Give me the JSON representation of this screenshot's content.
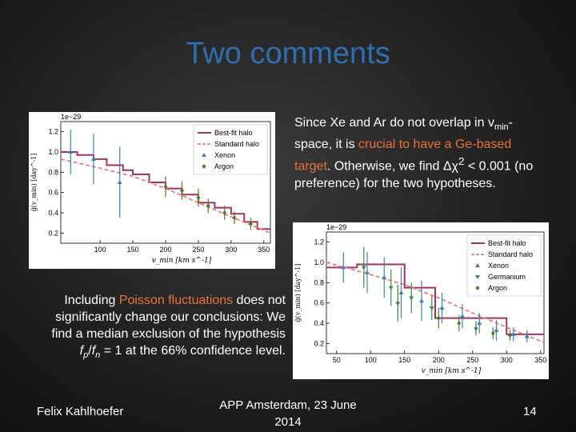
{
  "slide": {
    "title": "Two comments",
    "right_text": {
      "part1": "Since Xe and Ar do not overlap in v",
      "sub": "min",
      "part2": "-space, it is ",
      "highlight": "crucial to have a Ge-based target",
      "part3": ". Otherwise, we find Δχ",
      "sup": "2",
      "part4": " < 0.001 (no preference) for the two hypotheses."
    },
    "left_text": {
      "part1": "Including ",
      "highlight": "Poisson fluctuations",
      "part2": " does not significantly change our conclusions: We find a median exclusion of the hypothesis ",
      "fp": "f",
      "fp_sub": "p",
      "slash": "/",
      "fn": "f",
      "fn_sub": "n",
      "part3": " = 1 at the 66% confidence level."
    },
    "footer": {
      "author": "Felix Kahlhoefer",
      "event_line1": "APP Amsterdam, 23 June",
      "event_line2": "2014",
      "page": "14"
    }
  },
  "colors": {
    "title": "#2f6fb0",
    "highlight": "#e8743b",
    "best_fit": "#a0355a",
    "standard": "#e8807a",
    "xenon": "#3d7fb8",
    "argon": "#4e7a2e",
    "germanium": "#3d8a4a"
  },
  "chart_data": [
    {
      "type": "line",
      "scale_label": "1e−29",
      "xlabel": "v_min [km s^-1]",
      "ylabel": "g̃(v_min) [day^-1]",
      "xlim": [
        40,
        360
      ],
      "ylim": [
        0.1,
        1.3
      ],
      "x_ticks": [
        "100",
        "150",
        "200",
        "250",
        "300",
        "350"
      ],
      "y_ticks": [
        "0.2",
        "0.4",
        "0.6",
        "0.8",
        "1.0",
        "1.2"
      ],
      "legend_position": "top-right",
      "legend": [
        "Best-fit halo",
        "Standard halo",
        "Xenon",
        "Argon"
      ],
      "series": [
        {
          "name": "Best-fit halo",
          "kind": "step",
          "x": [
            40,
            55,
            65,
            90,
            110,
            135,
            150,
            175,
            200,
            225,
            250,
            275,
            300,
            320,
            340,
            360
          ],
          "y": [
            1.0,
            1.0,
            0.97,
            0.93,
            0.87,
            0.82,
            0.78,
            0.7,
            0.64,
            0.58,
            0.5,
            0.45,
            0.39,
            0.31,
            0.24,
            0.24
          ]
        },
        {
          "name": "Standard halo",
          "kind": "line",
          "x": [
            40,
            100,
            150,
            200,
            250,
            300,
            360
          ],
          "y": [
            0.93,
            0.84,
            0.76,
            0.64,
            0.5,
            0.36,
            0.2
          ]
        },
        {
          "name": "Xenon",
          "kind": "errorbar",
          "x": [
            55,
            90,
            130
          ],
          "y": [
            1.0,
            0.93,
            0.7
          ],
          "yerr": [
            0.22,
            0.25,
            0.35
          ]
        },
        {
          "name": "Argon",
          "kind": "errorbar",
          "x": [
            200,
            225,
            250,
            265,
            290,
            305,
            330
          ],
          "y": [
            0.66,
            0.62,
            0.55,
            0.47,
            0.4,
            0.35,
            0.29
          ],
          "yerr": [
            0.1,
            0.09,
            0.09,
            0.07,
            0.07,
            0.06,
            0.06
          ]
        }
      ]
    },
    {
      "type": "line",
      "scale_label": "1e−29",
      "xlabel": "v_min [km s^-1]",
      "ylabel": "g̃(v_min) [day^-1]",
      "xlim": [
        35,
        355
      ],
      "ylim": [
        0.1,
        1.3
      ],
      "x_ticks": [
        "50",
        "100",
        "150",
        "200",
        "250",
        "300",
        "350"
      ],
      "y_ticks": [
        "0.2",
        "0.4",
        "0.6",
        "0.8",
        "1.0",
        "1.2"
      ],
      "legend_position": "top-right",
      "legend": [
        "Best-fit halo",
        "Standard halo",
        "Xenon",
        "Germanium",
        "Argon"
      ],
      "series": [
        {
          "name": "Best-fit halo",
          "kind": "step",
          "x": [
            35,
            80,
            150,
            195,
            300,
            355
          ],
          "y": [
            0.95,
            0.98,
            0.75,
            0.45,
            0.29,
            0.29
          ]
        },
        {
          "name": "Standard halo",
          "kind": "line",
          "x": [
            35,
            100,
            150,
            200,
            250,
            300,
            355
          ],
          "y": [
            1.0,
            0.88,
            0.78,
            0.65,
            0.5,
            0.36,
            0.21
          ]
        },
        {
          "name": "Xenon",
          "kind": "errorbar",
          "x": [
            60,
            95,
            120,
            145,
            175,
            205,
            235,
            260,
            285,
            310,
            330
          ],
          "y": [
            0.95,
            0.9,
            0.85,
            0.7,
            0.62,
            0.55,
            0.47,
            0.4,
            0.33,
            0.29,
            0.27
          ],
          "yerr": [
            0.15,
            0.2,
            0.2,
            0.25,
            0.2,
            0.15,
            0.12,
            0.1,
            0.1,
            0.07,
            0.06
          ]
        },
        {
          "name": "Germanium",
          "kind": "errorbar",
          "x": [
            90,
            130,
            160,
            190
          ],
          "y": [
            0.95,
            0.75,
            0.65,
            0.55
          ],
          "yerr": [
            0.2,
            0.18,
            0.15,
            0.12
          ]
        },
        {
          "name": "Argon",
          "kind": "errorbar",
          "x": [
            140,
            200,
            230,
            255,
            280,
            305
          ],
          "y": [
            0.6,
            0.45,
            0.4,
            0.35,
            0.3,
            0.28
          ],
          "yerr": [
            0.18,
            0.1,
            0.08,
            0.07,
            0.06,
            0.05
          ]
        }
      ]
    }
  ]
}
